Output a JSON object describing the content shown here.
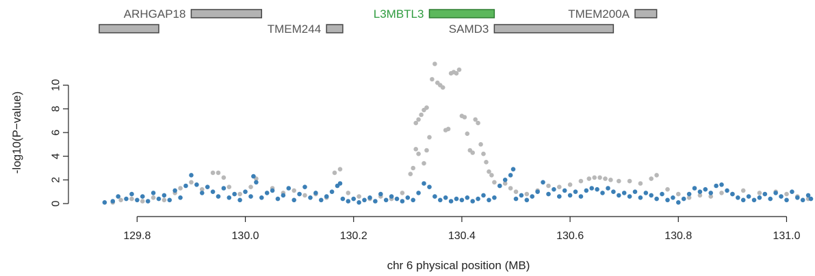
{
  "chart_data": {
    "type": "scatter",
    "title": "",
    "xlabel": "chr 6 physical position (MB)",
    "ylabel": "-log10(P−value)",
    "xlim": [
      129.73,
      131.05
    ],
    "ylim": [
      0,
      12
    ],
    "xticks": [
      129.8,
      130.0,
      130.2,
      130.4,
      130.6,
      130.8,
      131.0
    ],
    "xtick_labels": [
      "129.8",
      "130.0",
      "130.2",
      "130.4",
      "130.6",
      "130.8",
      "131.0"
    ],
    "yticks": [
      0,
      2,
      4,
      6,
      8,
      10
    ],
    "ytick_labels": [
      "0",
      "2",
      "4",
      "6",
      "8",
      "10"
    ],
    "grid": false,
    "genes": [
      {
        "name": "ARHGAP18",
        "start": 129.9,
        "end": 130.03,
        "row": 0,
        "highlight": false
      },
      {
        "name": "L3MBTL3",
        "start": 130.34,
        "end": 130.46,
        "row": 0,
        "highlight": true
      },
      {
        "name": "TMEM200A",
        "start": 130.72,
        "end": 130.76,
        "row": 0,
        "highlight": false
      },
      {
        "name": "",
        "start": 129.73,
        "end": 129.84,
        "row": 1,
        "highlight": false
      },
      {
        "name": "TMEM244",
        "start": 130.15,
        "end": 130.18,
        "row": 1,
        "highlight": false
      },
      {
        "name": "SAMD3",
        "start": 130.46,
        "end": 130.68,
        "row": 1,
        "highlight": false
      }
    ],
    "colors": {
      "series_blue": "#3b7fb6",
      "series_gray": "#b8b8b8",
      "gene_gray": "#b3b3b3",
      "gene_green": "#5cb85c",
      "gene_green_text": "#2e9b3e",
      "gene_text": "#555555"
    },
    "series": [
      {
        "color": "#b8b8b8",
        "points": [
          [
            129.755,
            0.1
          ],
          [
            129.77,
            0.3
          ],
          [
            129.79,
            0.4
          ],
          [
            129.81,
            0.2
          ],
          [
            129.83,
            0.5
          ],
          [
            129.85,
            0.3
          ],
          [
            129.87,
            0.9
          ],
          [
            129.88,
            1.3
          ],
          [
            129.9,
            1.8
          ],
          [
            129.92,
            1.2
          ],
          [
            129.94,
            2.6
          ],
          [
            129.95,
            2.6
          ],
          [
            129.96,
            2.2
          ],
          [
            129.97,
            1.4
          ],
          [
            129.99,
            0.8
          ],
          [
            130.01,
            1.4
          ],
          [
            130.02,
            2.1
          ],
          [
            130.05,
            1.3
          ],
          [
            130.07,
            0.9
          ],
          [
            130.09,
            1.1
          ],
          [
            130.11,
            0.7
          ],
          [
            130.13,
            0.8
          ],
          [
            130.15,
            0.5
          ],
          [
            130.165,
            2.6
          ],
          [
            130.175,
            2.9
          ],
          [
            130.19,
            0.9
          ],
          [
            130.21,
            0.6
          ],
          [
            130.23,
            0.4
          ],
          [
            130.25,
            0.6
          ],
          [
            130.27,
            0.4
          ],
          [
            130.29,
            0.9
          ],
          [
            130.305,
            2.5
          ],
          [
            130.31,
            3.0
          ],
          [
            130.315,
            4.6
          ],
          [
            130.32,
            4.2
          ],
          [
            130.33,
            3.4
          ],
          [
            130.335,
            4.5
          ],
          [
            130.315,
            6.8
          ],
          [
            130.32,
            7.1
          ],
          [
            130.325,
            7.5
          ],
          [
            130.33,
            7.9
          ],
          [
            130.335,
            8.1
          ],
          [
            130.34,
            5.6
          ],
          [
            130.345,
            10.5
          ],
          [
            130.35,
            11.8
          ],
          [
            130.355,
            10.2
          ],
          [
            130.36,
            10.0
          ],
          [
            130.365,
            9.8
          ],
          [
            130.37,
            6.2
          ],
          [
            130.375,
            6.3
          ],
          [
            130.38,
            11.0
          ],
          [
            130.385,
            11.1
          ],
          [
            130.39,
            11.0
          ],
          [
            130.395,
            11.3
          ],
          [
            130.4,
            7.4
          ],
          [
            130.405,
            7.3
          ],
          [
            130.41,
            5.9
          ],
          [
            130.415,
            4.5
          ],
          [
            130.42,
            4.3
          ],
          [
            130.425,
            7.1
          ],
          [
            130.43,
            6.8
          ],
          [
            130.435,
            5.0
          ],
          [
            130.44,
            4.2
          ],
          [
            130.445,
            3.5
          ],
          [
            130.45,
            2.7
          ],
          [
            130.455,
            2.4
          ],
          [
            130.46,
            1.8
          ],
          [
            130.47,
            1.5
          ],
          [
            130.48,
            1.7
          ],
          [
            130.49,
            1.3
          ],
          [
            130.5,
            1.0
          ],
          [
            130.52,
            0.8
          ],
          [
            130.54,
            1.1
          ],
          [
            130.56,
            1.5
          ],
          [
            130.58,
            1.4
          ],
          [
            130.6,
            1.6
          ],
          [
            130.62,
            1.9
          ],
          [
            130.635,
            2.1
          ],
          [
            130.645,
            2.2
          ],
          [
            130.655,
            2.2
          ],
          [
            130.665,
            2.1
          ],
          [
            130.675,
            2.0
          ],
          [
            130.69,
            1.9
          ],
          [
            130.71,
            1.9
          ],
          [
            130.73,
            1.7
          ],
          [
            130.75,
            2.1
          ],
          [
            130.76,
            2.4
          ],
          [
            130.78,
            1.2
          ],
          [
            130.8,
            0.8
          ],
          [
            130.82,
            0.5
          ],
          [
            130.84,
            0.7
          ],
          [
            130.86,
            0.6
          ],
          [
            130.88,
            0.9
          ],
          [
            130.9,
            0.8
          ],
          [
            130.92,
            1.1
          ],
          [
            130.95,
            0.9
          ],
          [
            130.98,
            1.0
          ],
          [
            131.0,
            0.8
          ],
          [
            131.02,
            0.6
          ],
          [
            131.04,
            0.4
          ]
        ]
      },
      {
        "color": "#3b7fb6",
        "points": [
          [
            129.74,
            0.1
          ],
          [
            129.755,
            0.2
          ],
          [
            129.765,
            0.6
          ],
          [
            129.78,
            0.4
          ],
          [
            129.79,
            0.8
          ],
          [
            129.8,
            0.3
          ],
          [
            129.81,
            0.6
          ],
          [
            129.82,
            0.2
          ],
          [
            129.83,
            0.9
          ],
          [
            129.84,
            0.4
          ],
          [
            129.85,
            0.7
          ],
          [
            129.86,
            0.3
          ],
          [
            129.87,
            1.1
          ],
          [
            129.88,
            0.5
          ],
          [
            129.89,
            1.5
          ],
          [
            129.9,
            2.4
          ],
          [
            129.91,
            1.6
          ],
          [
            129.92,
            0.9
          ],
          [
            129.93,
            1.4
          ],
          [
            129.94,
            1.0
          ],
          [
            129.95,
            0.6
          ],
          [
            129.96,
            1.3
          ],
          [
            129.97,
            0.5
          ],
          [
            129.98,
            0.8
          ],
          [
            129.99,
            0.3
          ],
          [
            130.0,
            1.0
          ],
          [
            130.01,
            0.6
          ],
          [
            130.015,
            2.3
          ],
          [
            130.02,
            1.8
          ],
          [
            130.03,
            0.5
          ],
          [
            130.04,
            0.9
          ],
          [
            130.05,
            1.1
          ],
          [
            130.06,
            0.4
          ],
          [
            130.07,
            0.7
          ],
          [
            130.08,
            1.3
          ],
          [
            130.09,
            0.3
          ],
          [
            130.1,
            0.8
          ],
          [
            130.11,
            1.4
          ],
          [
            130.12,
            0.5
          ],
          [
            130.13,
            0.9
          ],
          [
            130.14,
            0.3
          ],
          [
            130.15,
            0.6
          ],
          [
            130.16,
            1.0
          ],
          [
            130.17,
            1.5
          ],
          [
            130.175,
            1.7
          ],
          [
            130.18,
            0.4
          ],
          [
            130.19,
            0.2
          ],
          [
            130.2,
            0.4
          ],
          [
            130.21,
            0.1
          ],
          [
            130.22,
            0.3
          ],
          [
            130.23,
            0.5
          ],
          [
            130.24,
            0.2
          ],
          [
            130.25,
            0.8
          ],
          [
            130.26,
            0.3
          ],
          [
            130.27,
            0.6
          ],
          [
            130.28,
            0.4
          ],
          [
            130.29,
            0.2
          ],
          [
            130.3,
            0.5
          ],
          [
            130.31,
            0.3
          ],
          [
            130.32,
            0.9
          ],
          [
            130.33,
            1.7
          ],
          [
            130.34,
            1.4
          ],
          [
            130.35,
            0.6
          ],
          [
            130.36,
            0.3
          ],
          [
            130.37,
            0.5
          ],
          [
            130.38,
            0.2
          ],
          [
            130.39,
            0.4
          ],
          [
            130.4,
            0.3
          ],
          [
            130.41,
            0.5
          ],
          [
            130.42,
            0.2
          ],
          [
            130.43,
            0.4
          ],
          [
            130.44,
            0.7
          ],
          [
            130.45,
            0.3
          ],
          [
            130.46,
            0.5
          ],
          [
            130.47,
            1.5
          ],
          [
            130.48,
            2.0
          ],
          [
            130.49,
            2.4
          ],
          [
            130.495,
            2.9
          ],
          [
            130.5,
            0.4
          ],
          [
            130.51,
            0.7
          ],
          [
            130.52,
            0.3
          ],
          [
            130.53,
            0.6
          ],
          [
            130.54,
            1.0
          ],
          [
            130.55,
            1.8
          ],
          [
            130.56,
            0.8
          ],
          [
            130.57,
            1.2
          ],
          [
            130.58,
            0.6
          ],
          [
            130.59,
            1.1
          ],
          [
            130.6,
            0.7
          ],
          [
            130.61,
            1.0
          ],
          [
            130.62,
            0.6
          ],
          [
            130.63,
            1.1
          ],
          [
            130.64,
            1.3
          ],
          [
            130.65,
            1.2
          ],
          [
            130.66,
            0.9
          ],
          [
            130.67,
            1.3
          ],
          [
            130.68,
            1.0
          ],
          [
            130.69,
            0.7
          ],
          [
            130.7,
            0.9
          ],
          [
            130.71,
            0.6
          ],
          [
            130.72,
            1.0
          ],
          [
            130.73,
            0.5
          ],
          [
            130.74,
            0.9
          ],
          [
            130.75,
            0.7
          ],
          [
            130.76,
            0.4
          ],
          [
            130.77,
            0.8
          ],
          [
            130.78,
            0.3
          ],
          [
            130.79,
            0.5
          ],
          [
            130.8,
            0.1
          ],
          [
            130.81,
            0.4
          ],
          [
            130.82,
            0.8
          ],
          [
            130.83,
            1.3
          ],
          [
            130.84,
            1.0
          ],
          [
            130.85,
            1.2
          ],
          [
            130.86,
            0.9
          ],
          [
            130.87,
            1.5
          ],
          [
            130.88,
            1.6
          ],
          [
            130.89,
            1.1
          ],
          [
            130.9,
            0.8
          ],
          [
            130.91,
            0.5
          ],
          [
            130.92,
            0.3
          ],
          [
            130.93,
            0.6
          ],
          [
            130.94,
            0.3
          ],
          [
            130.95,
            0.5
          ],
          [
            130.96,
            0.8
          ],
          [
            130.97,
            0.4
          ],
          [
            130.98,
            0.9
          ],
          [
            130.99,
            0.6
          ],
          [
            131.0,
            0.3
          ],
          [
            131.01,
            1.0
          ],
          [
            131.02,
            0.5
          ],
          [
            131.03,
            0.3
          ],
          [
            131.04,
            0.7
          ],
          [
            131.045,
            0.4
          ]
        ]
      }
    ]
  }
}
